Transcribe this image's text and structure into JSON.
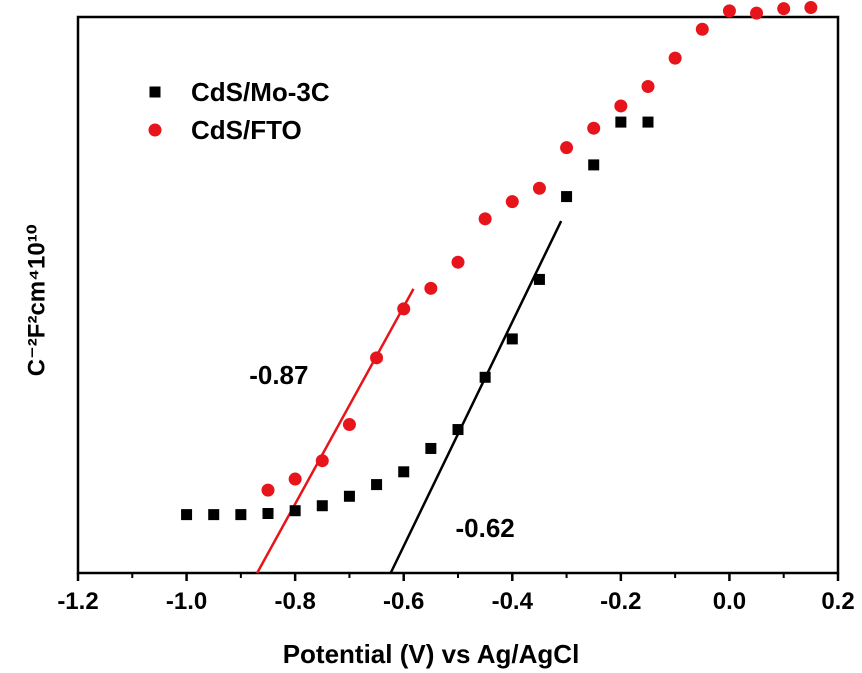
{
  "chart_data": {
    "type": "scatter",
    "xlabel": "Potential (V) vs Ag/AgCl",
    "ylabel": "C⁻²F²cm⁴10¹⁰",
    "xlim": [
      -1.2,
      0.2
    ],
    "ylim": [
      0,
      100
    ],
    "xticks": [
      "-1.2",
      "-1.0",
      "-0.8",
      "-0.6",
      "-0.4",
      "-0.2",
      "0.0",
      "0.2"
    ],
    "legend_position": "top-left",
    "grid": false,
    "series": [
      {
        "name": "CdS/Mo-3C",
        "marker": "square",
        "color": "#000000",
        "x": [
          -1.0,
          -0.95,
          -0.9,
          -0.85,
          -0.8,
          -0.75,
          -0.7,
          -0.65,
          -0.6,
          -0.55,
          -0.5,
          -0.45,
          -0.4,
          -0.35,
          -0.3,
          -0.25,
          -0.2,
          -0.15
        ],
        "y": [
          10.5,
          10.5,
          10.5,
          10.7,
          11.2,
          12.1,
          13.8,
          15.9,
          18.2,
          22.4,
          25.8,
          35.2,
          42.1,
          52.8,
          67.7,
          73.4,
          81.1,
          81.1
        ]
      },
      {
        "name": "CdS/FTO",
        "marker": "circle",
        "color": "#e8141b",
        "x": [
          -0.85,
          -0.8,
          -0.75,
          -0.7,
          -0.65,
          -0.6,
          -0.55,
          -0.5,
          -0.45,
          -0.4,
          -0.35,
          -0.3,
          -0.25,
          -0.2,
          -0.15,
          -0.1,
          -0.05,
          0.0,
          0.05,
          0.1,
          0.15
        ],
        "y": [
          14.9,
          16.9,
          20.2,
          26.7,
          38.7,
          47.5,
          51.2,
          55.9,
          63.7,
          66.8,
          69.2,
          76.5,
          80.0,
          84.0,
          87.5,
          92.6,
          97.8,
          101.1,
          100.7,
          101.5,
          101.7
        ]
      }
    ],
    "fit_lines": [
      {
        "series": "CdS/Mo-3C",
        "color": "#000000",
        "x": [
          -0.624,
          -0.31
        ],
        "y": [
          0.0,
          63.3
        ]
      },
      {
        "series": "CdS/FTO",
        "color": "#e8141b",
        "x": [
          -0.87,
          -0.582
        ],
        "y": [
          0.0,
          51.1
        ]
      }
    ],
    "annotations": [
      {
        "text": "-0.87",
        "x": -0.83,
        "y": 34.0
      },
      {
        "text": "-0.62",
        "x": -0.45,
        "y": 6.5
      }
    ]
  }
}
